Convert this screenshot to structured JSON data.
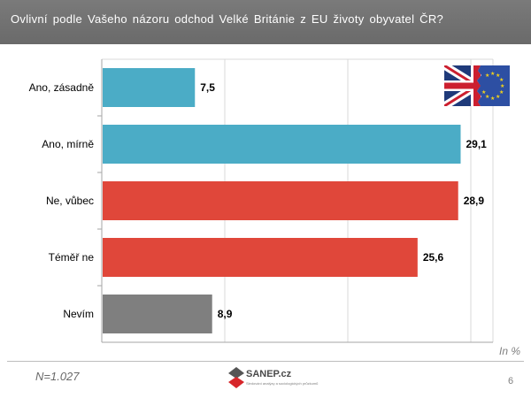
{
  "header": {
    "title": "Ovlivní podle Vašeho názoru odchod Velké Británie z EU životy obyvatel ČR?"
  },
  "chart_data": {
    "type": "bar",
    "orientation": "horizontal",
    "categories": [
      "Ano, zásadně",
      "Ano, mírně",
      "Ne, vůbec",
      "Téměř ne",
      "Nevím"
    ],
    "values": [
      7.5,
      29.1,
      28.9,
      25.6,
      8.9
    ],
    "value_labels": [
      "7,5",
      "29,1",
      "28,9",
      "25,6",
      "8,9"
    ],
    "colors": [
      "#4bacc6",
      "#4bacc6",
      "#e0473a",
      "#e0473a",
      "#7f7f7f"
    ],
    "xlim": [
      0,
      30
    ],
    "grid": true,
    "units_label": "In %"
  },
  "footer": {
    "sample": "N=1.027",
    "logo_text": "SANEP.cz",
    "logo_subtext": "Sledování analýzy a sociologických průzkumů",
    "page_number": "6"
  },
  "flag": {
    "icon": "uk-eu-split-flag-icon"
  }
}
